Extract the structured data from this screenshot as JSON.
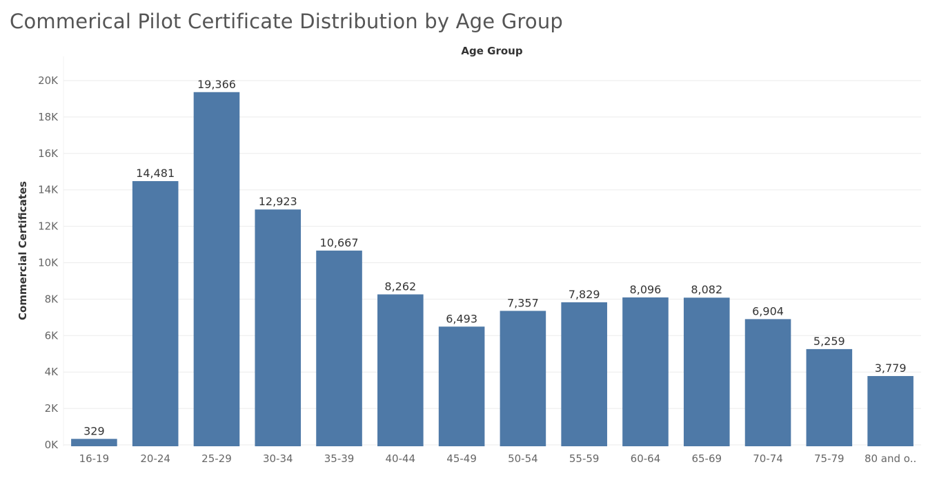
{
  "page": {
    "title": "Commerical Pilot Certificate Distribution by Age Group"
  },
  "chart_data": {
    "type": "bar",
    "title": "Commerical Pilot Certificate Distribution by Age Group",
    "xlabel": "Age Group",
    "ylabel": "Commercial Certificates",
    "categories": [
      "16-19",
      "20-24",
      "25-29",
      "30-34",
      "35-39",
      "40-44",
      "45-49",
      "50-54",
      "55-59",
      "60-64",
      "65-69",
      "70-74",
      "75-79",
      "80 and o.."
    ],
    "values": [
      329,
      14481,
      19366,
      12923,
      10667,
      8262,
      6493,
      7357,
      7829,
      8096,
      8082,
      6904,
      5259,
      3779
    ],
    "data_labels": [
      "329",
      "14,481",
      "19,366",
      "12,923",
      "10,667",
      "8,262",
      "6,493",
      "7,357",
      "7,829",
      "8,096",
      "8,082",
      "6,904",
      "5,259",
      "3,779"
    ],
    "ylim": [
      0,
      20000
    ],
    "yticks": [
      0,
      2000,
      4000,
      6000,
      8000,
      10000,
      12000,
      14000,
      16000,
      18000,
      20000
    ],
    "ytick_labels": [
      "0K",
      "2K",
      "4K",
      "6K",
      "8K",
      "10K",
      "12K",
      "14K",
      "16K",
      "18K",
      "20K"
    ],
    "grid": true,
    "bar_color": "#4e79a7"
  }
}
